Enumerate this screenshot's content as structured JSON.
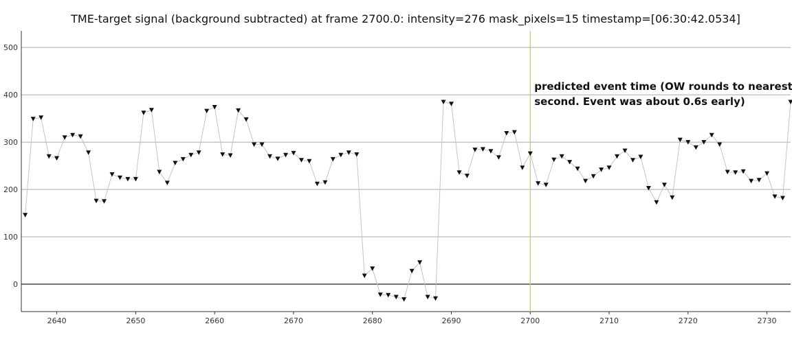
{
  "chart_data": {
    "type": "line",
    "title": "TME-target signal (background subtracted) at frame 2700.0: intensity=276 mask_pixels=15 timestamp=[06:30:42.0534]",
    "xlabel": "",
    "ylabel": "",
    "xlim": [
      2635.5,
      2733
    ],
    "ylim": [
      -58,
      535
    ],
    "x_ticks": [
      2640,
      2650,
      2660,
      2670,
      2680,
      2690,
      2700,
      2710,
      2720,
      2730
    ],
    "y_ticks": [
      0,
      100,
      200,
      300,
      400,
      500
    ],
    "grid": true,
    "marker": "triangle-down",
    "series": [
      {
        "x": [
          2636,
          2637,
          2638,
          2639,
          2640,
          2641,
          2642,
          2643,
          2644,
          2645,
          2646,
          2647,
          2648,
          2649,
          2650,
          2651,
          2652,
          2653,
          2654,
          2655,
          2656,
          2657,
          2658,
          2659,
          2660,
          2661,
          2662,
          2663,
          2664,
          2665,
          2666,
          2667,
          2668,
          2669,
          2670,
          2671,
          2672,
          2673,
          2674,
          2675,
          2676,
          2677,
          2678,
          2679,
          2680,
          2681,
          2682,
          2683,
          2684,
          2685,
          2686,
          2687,
          2688,
          2689,
          2690,
          2691,
          2692,
          2693,
          2694,
          2695,
          2696,
          2697,
          2698,
          2699,
          2700,
          2701,
          2702,
          2703,
          2704,
          2705,
          2706,
          2707,
          2708,
          2709,
          2710,
          2711,
          2712,
          2713,
          2714,
          2715,
          2716,
          2717,
          2718,
          2719,
          2720,
          2721,
          2722,
          2723,
          2724,
          2725,
          2726,
          2727,
          2728,
          2729,
          2730,
          2731,
          2732,
          2733
        ],
        "values": [
          146,
          349,
          352,
          270,
          266,
          310,
          315,
          312,
          278,
          176,
          175,
          232,
          225,
          222,
          222,
          362,
          368,
          237,
          214,
          256,
          264,
          273,
          278,
          366,
          374,
          274,
          272,
          367,
          348,
          295,
          295,
          270,
          265,
          273,
          277,
          262,
          260,
          212,
          215,
          264,
          273,
          278,
          274,
          18,
          33,
          -22,
          -23,
          -27,
          -32,
          28,
          46,
          -27,
          -30,
          385,
          381,
          236,
          229,
          284,
          285,
          281,
          268,
          319,
          321,
          246,
          276,
          213,
          210,
          263,
          270,
          258,
          244,
          218,
          228,
          242,
          246,
          270,
          282,
          262,
          269,
          203,
          173,
          210,
          183,
          305,
          300,
          289,
          300,
          315,
          295,
          237,
          236,
          238,
          218,
          220,
          234,
          185,
          182,
          385
        ]
      }
    ],
    "annotations": [
      {
        "x": 2700,
        "lines": [
          "predicted event time (OW rounds to nearest",
          "second. Event was about 0.6s early)"
        ]
      }
    ]
  }
}
